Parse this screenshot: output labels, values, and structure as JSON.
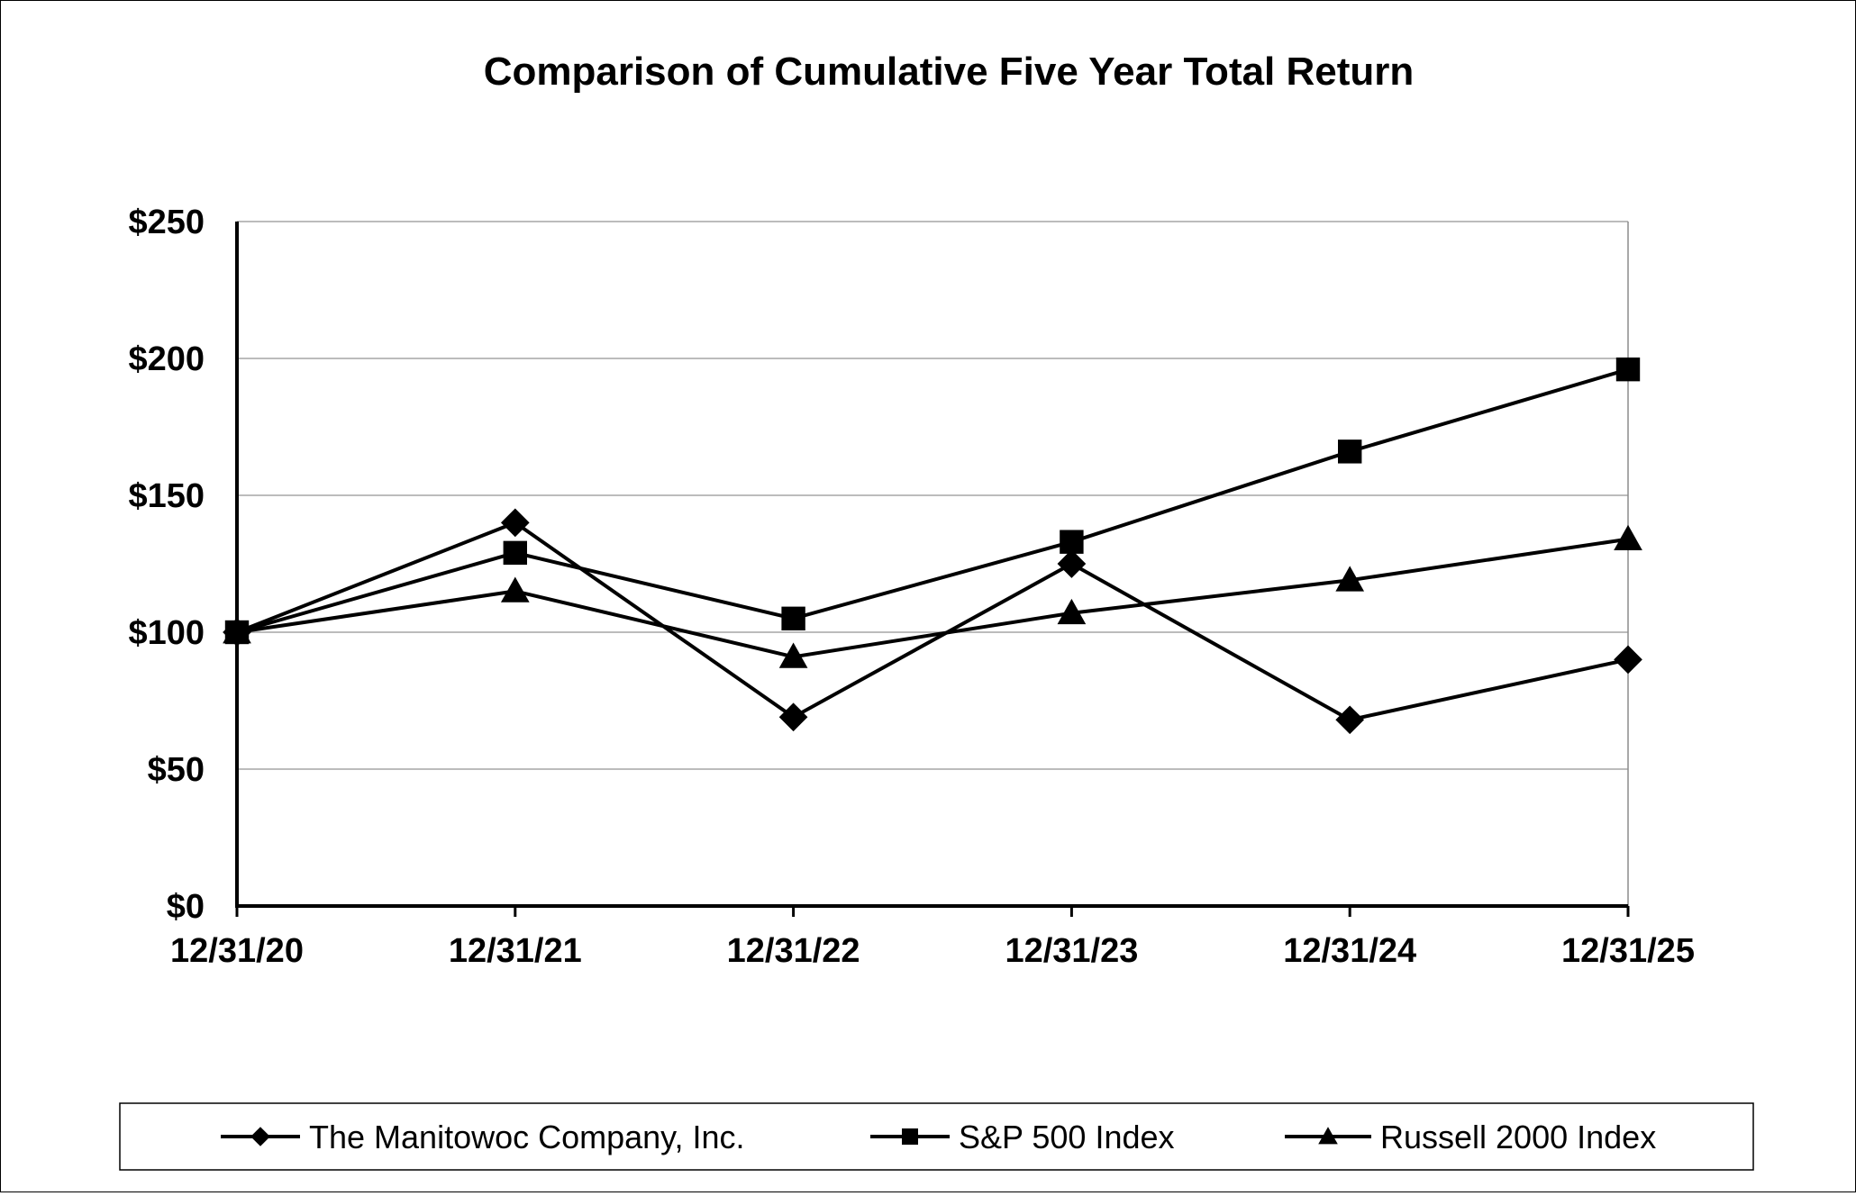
{
  "chart_data": {
    "type": "line",
    "title": "Comparison of Cumulative Five Year Total Return",
    "xlabel": "",
    "ylabel": "",
    "categories": [
      "12/31/20",
      "12/31/21",
      "12/31/22",
      "12/31/23",
      "12/31/24",
      "12/31/25"
    ],
    "ylim": [
      0,
      250
    ],
    "yticks": [
      0,
      50,
      100,
      150,
      200,
      250
    ],
    "ytick_labels": [
      "$0",
      "$50",
      "$100",
      "$150",
      "$200",
      "$250"
    ],
    "grid": true,
    "legend_position": "bottom",
    "series": [
      {
        "name": "The Manitowoc Company, Inc.",
        "marker": "diamond",
        "color": "#000000",
        "values": [
          100,
          140,
          69,
          125,
          68,
          90
        ]
      },
      {
        "name": "S&P 500 Index",
        "marker": "square",
        "color": "#000000",
        "values": [
          100,
          129,
          105,
          133,
          166,
          196
        ]
      },
      {
        "name": "Russell 2000 Index",
        "marker": "triangle",
        "color": "#000000",
        "values": [
          100,
          115,
          91,
          107,
          119,
          134
        ]
      }
    ]
  }
}
